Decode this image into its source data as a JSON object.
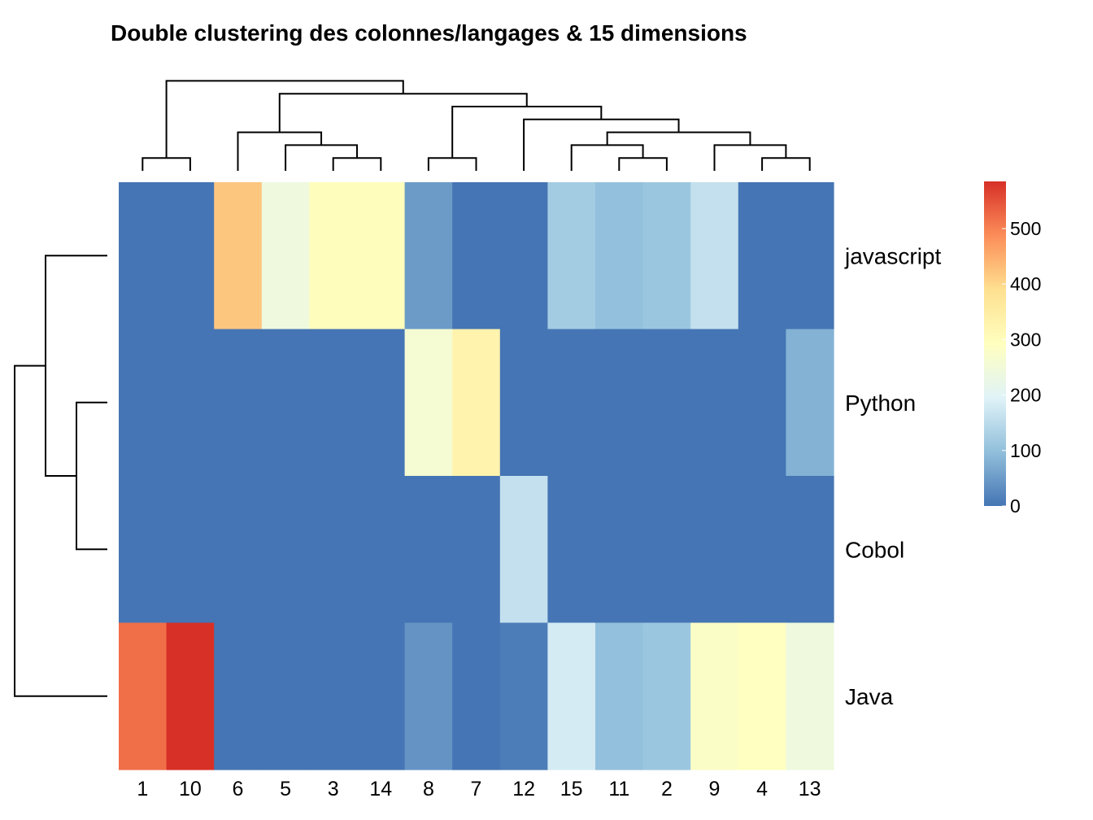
{
  "chart_data": {
    "type": "heatmap",
    "title": "Double clustering des colonnes/langages & 15 dimensions",
    "rows": [
      "javascript",
      "Python",
      "Cobol",
      "Java"
    ],
    "columns": [
      "1",
      "10",
      "6",
      "5",
      "3",
      "14",
      "8",
      "7",
      "12",
      "15",
      "11",
      "2",
      "9",
      "4",
      "13"
    ],
    "values": [
      [
        0,
        0,
        420,
        240,
        300,
        300,
        50,
        0,
        0,
        120,
        100,
        110,
        160,
        0,
        0
      ],
      [
        0,
        0,
        0,
        0,
        0,
        0,
        260,
        330,
        0,
        0,
        0,
        0,
        0,
        0,
        80
      ],
      [
        0,
        0,
        0,
        0,
        0,
        0,
        0,
        0,
        160,
        0,
        0,
        0,
        0,
        0,
        0
      ],
      [
        520,
        585,
        0,
        0,
        0,
        0,
        40,
        0,
        10,
        180,
        100,
        110,
        280,
        290,
        240
      ]
    ],
    "color_scale": {
      "min": 0,
      "max": 585,
      "ticks": [
        "0",
        "100",
        "200",
        "300",
        "400",
        "500"
      ],
      "colors": [
        "#4575B4",
        "#91BFDB",
        "#E0F3F8",
        "#FFFFBF",
        "#FEE090",
        "#FC8D59",
        "#D73027"
      ]
    },
    "column_dendrogram": [
      [
        0,
        1
      ],
      [
        4,
        5
      ],
      [
        3,
        16
      ],
      [
        2,
        17
      ],
      [
        10,
        11
      ],
      [
        9,
        19
      ],
      [
        13,
        14
      ],
      [
        12,
        21
      ],
      [
        20,
        22
      ],
      [
        8,
        23
      ],
      [
        6,
        7
      ],
      [
        25,
        24
      ],
      [
        18,
        26
      ],
      [
        15,
        27
      ]
    ],
    "row_dendrogram": [
      [
        1,
        2
      ],
      [
        0,
        4
      ],
      [
        5,
        3
      ]
    ],
    "legend_position": "right"
  }
}
